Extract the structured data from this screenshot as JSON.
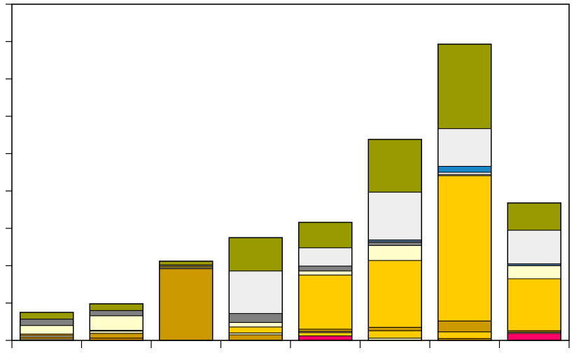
{
  "chart_data": {
    "type": "bar",
    "stacked": true,
    "title": "",
    "xlabel": "",
    "ylabel": "",
    "grid": false,
    "legend": "none",
    "ylim": [
      0,
      90
    ],
    "yticks": [
      0,
      10,
      20,
      30,
      40,
      50,
      60,
      70,
      80,
      90
    ],
    "categories": [
      "",
      "",
      "",
      "",
      "",
      "",
      "",
      ""
    ],
    "segment_colors": {
      "dark_gold": "#cc9900",
      "amber": "#ffcc00",
      "pink": "#ff0066",
      "light_yellow": "#ffffcc",
      "gray": "#808080",
      "blue": "#1a87c8",
      "slate": "#4f6f8f",
      "light_gray": "#eeeeee",
      "olive": "#999900",
      "orange": "#e69a00"
    },
    "bars": [
      {
        "segments": [
          {
            "c": "light_yellow",
            "v": 0.4
          },
          {
            "c": "orange",
            "v": 0.5
          },
          {
            "c": "light_yellow",
            "v": 0.4
          },
          {
            "c": "orange",
            "v": 0.4
          },
          {
            "c": "light_yellow",
            "v": 2.3
          },
          {
            "c": "gray",
            "v": 1.7
          },
          {
            "c": "olive",
            "v": 1.8
          }
        ]
      },
      {
        "segments": [
          {
            "c": "orange",
            "v": 0.6
          },
          {
            "c": "dark_gold",
            "v": 1.3
          },
          {
            "c": "light_yellow",
            "v": 0.6
          },
          {
            "c": "orange",
            "v": 0.2
          },
          {
            "c": "light_yellow",
            "v": 3.9
          },
          {
            "c": "gray",
            "v": 1.4
          },
          {
            "c": "olive",
            "v": 1.8
          }
        ]
      },
      {
        "segments": [
          {
            "c": "dark_gold",
            "v": 19.2
          },
          {
            "c": "light_yellow",
            "v": 0.3
          },
          {
            "c": "dark_gold",
            "v": 0.4
          },
          {
            "c": "light_yellow",
            "v": 0.3
          },
          {
            "c": "olive",
            "v": 1.0
          }
        ]
      },
      {
        "segments": [
          {
            "c": "dark_gold",
            "v": 1.5
          },
          {
            "c": "light_yellow",
            "v": 0.5
          },
          {
            "c": "amber",
            "v": 1.6
          },
          {
            "c": "light_yellow",
            "v": 1.2
          },
          {
            "c": "gray",
            "v": 2.4
          },
          {
            "c": "light_gray",
            "v": 11.4
          },
          {
            "c": "olive",
            "v": 8.9
          }
        ]
      },
      {
        "segments": [
          {
            "c": "pink",
            "v": 1.2
          },
          {
            "c": "amber",
            "v": 0.9
          },
          {
            "c": "light_yellow",
            "v": 0.3
          },
          {
            "c": "dark_gold",
            "v": 0.6
          },
          {
            "c": "amber",
            "v": 14.5
          },
          {
            "c": "light_yellow",
            "v": 1.1
          },
          {
            "c": "gray",
            "v": 1.3
          },
          {
            "c": "light_gray",
            "v": 4.9
          },
          {
            "c": "olive",
            "v": 6.8
          }
        ]
      },
      {
        "segments": [
          {
            "c": "light_yellow",
            "v": 0.6
          },
          {
            "c": "amber",
            "v": 2.0
          },
          {
            "c": "dark_gold",
            "v": 0.9
          },
          {
            "c": "amber",
            "v": 17.9
          },
          {
            "c": "light_yellow",
            "v": 4.0
          },
          {
            "c": "gray",
            "v": 0.9
          },
          {
            "c": "slate",
            "v": 0.6
          },
          {
            "c": "light_gray",
            "v": 12.8
          },
          {
            "c": "olive",
            "v": 14.1
          }
        ]
      },
      {
        "segments": [
          {
            "c": "orange",
            "v": 0.5
          },
          {
            "c": "amber",
            "v": 1.8
          },
          {
            "c": "dark_gold",
            "v": 2.9
          },
          {
            "c": "amber",
            "v": 38.9
          },
          {
            "c": "light_yellow",
            "v": 0.3
          },
          {
            "c": "light_gray",
            "v": 0.6
          },
          {
            "c": "blue",
            "v": 1.6
          },
          {
            "c": "light_gray",
            "v": 10.1
          },
          {
            "c": "olive",
            "v": 22.6
          }
        ]
      },
      {
        "segments": [
          {
            "c": "pink",
            "v": 1.9
          },
          {
            "c": "light_yellow",
            "v": 0.3
          },
          {
            "c": "dark_gold",
            "v": 0.4
          },
          {
            "c": "amber",
            "v": 13.9
          },
          {
            "c": "light_yellow",
            "v": 3.5
          },
          {
            "c": "slate",
            "v": 0.5
          },
          {
            "c": "light_gray",
            "v": 9.0
          },
          {
            "c": "olive",
            "v": 7.3
          }
        ]
      }
    ]
  }
}
